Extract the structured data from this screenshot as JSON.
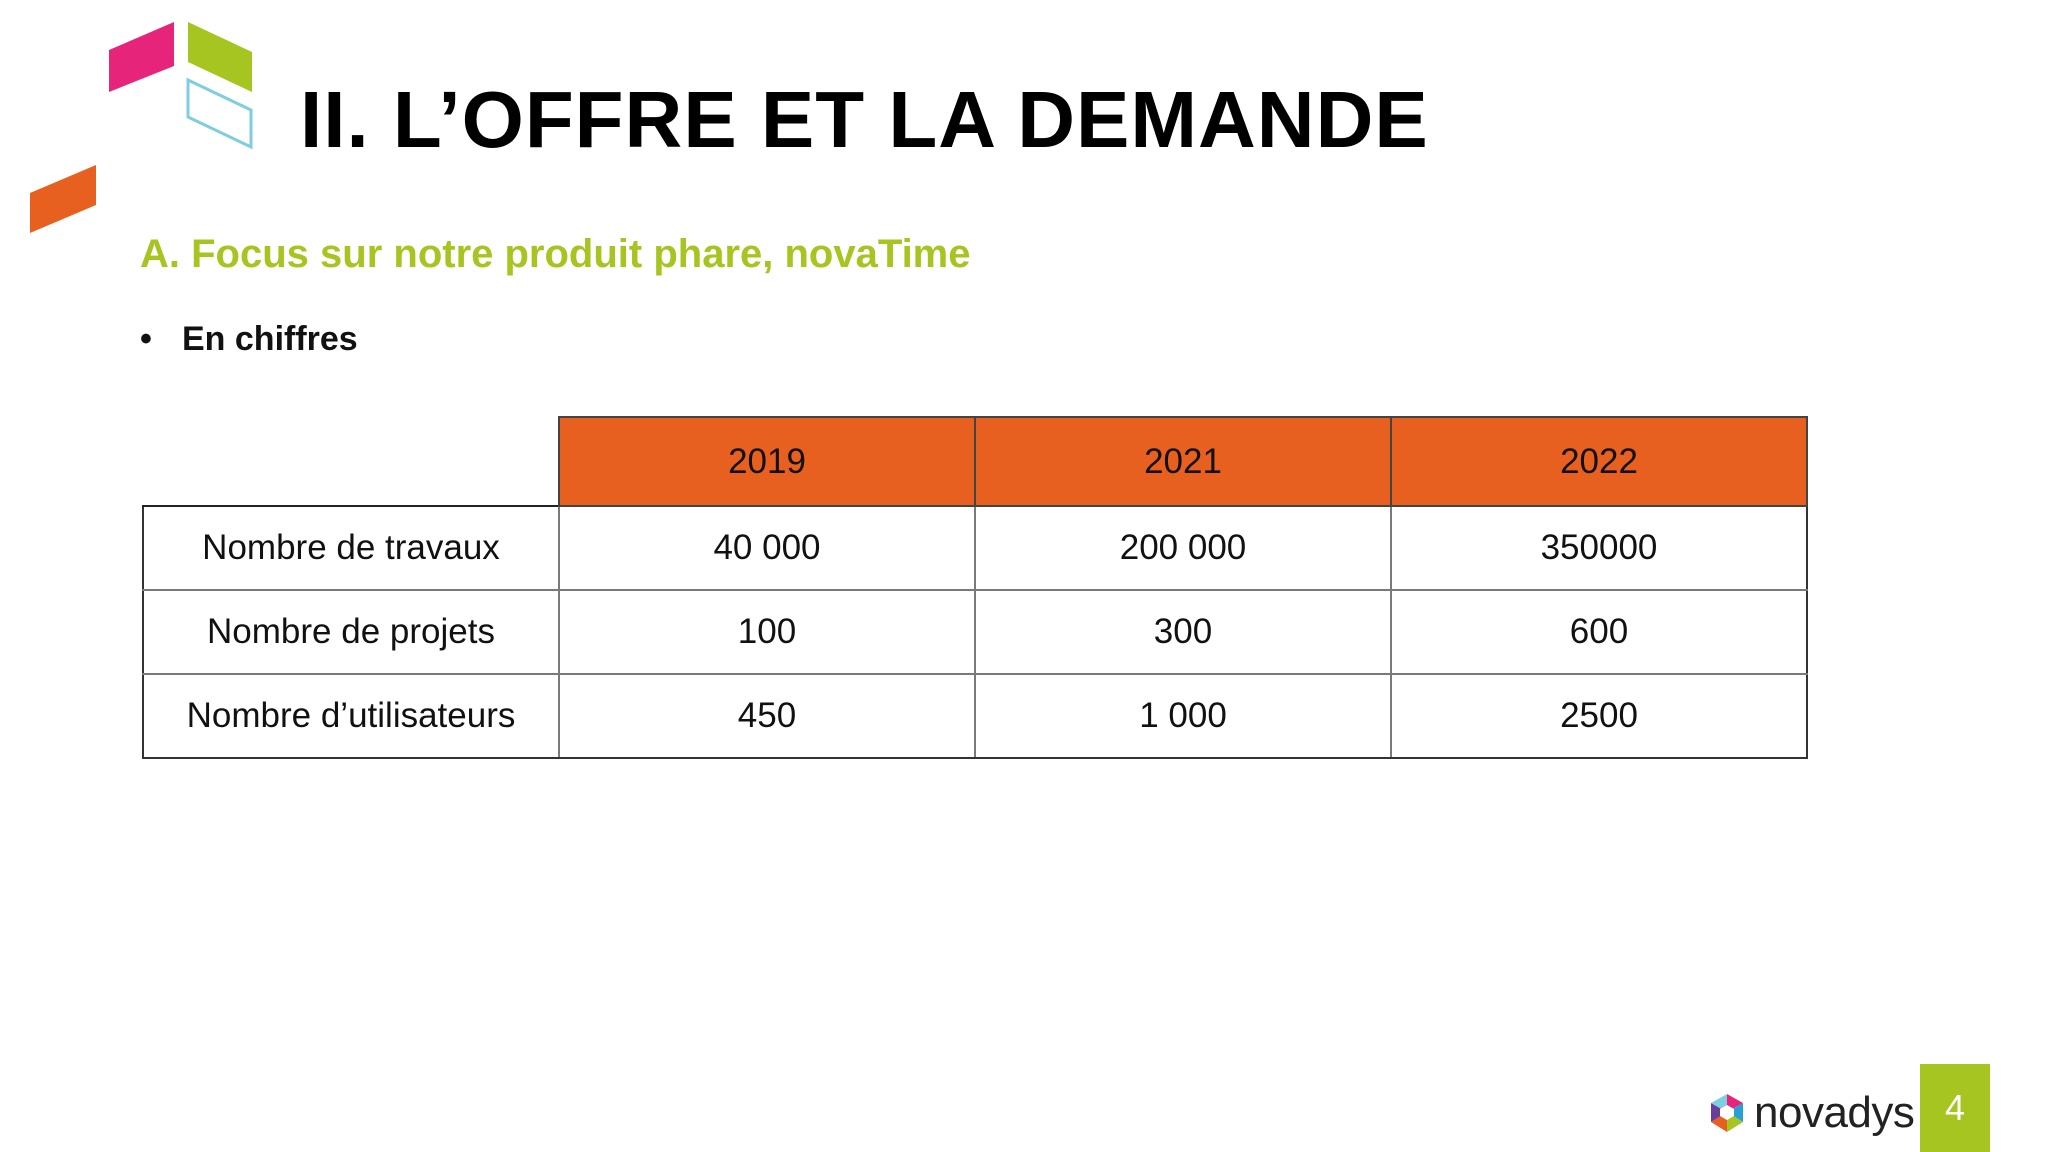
{
  "slide": {
    "title": "II. L’OFFRE ET LA DEMANDE",
    "subtitle": "A. Focus sur notre produit phare, novaTime",
    "bullet_marker": "•",
    "bullet": "En chiffres",
    "page_number": "4"
  },
  "table": {
    "headers": [
      "2019",
      "2021",
      "2022"
    ],
    "rows": [
      {
        "label": "Nombre de travaux",
        "values": [
          "40 000",
          "200 000",
          "350000"
        ]
      },
      {
        "label": "Nombre de projets",
        "values": [
          "100",
          "300",
          "600"
        ]
      },
      {
        "label": "Nombre d’utilisateurs",
        "values": [
          "450",
          "1 000",
          "2500"
        ]
      }
    ]
  },
  "brand": {
    "name": "novadys",
    "colors": {
      "green": "#a6c520",
      "orange": "#e8601f",
      "magenta": "#e6247a",
      "light_blue": "#7fcde0"
    }
  }
}
